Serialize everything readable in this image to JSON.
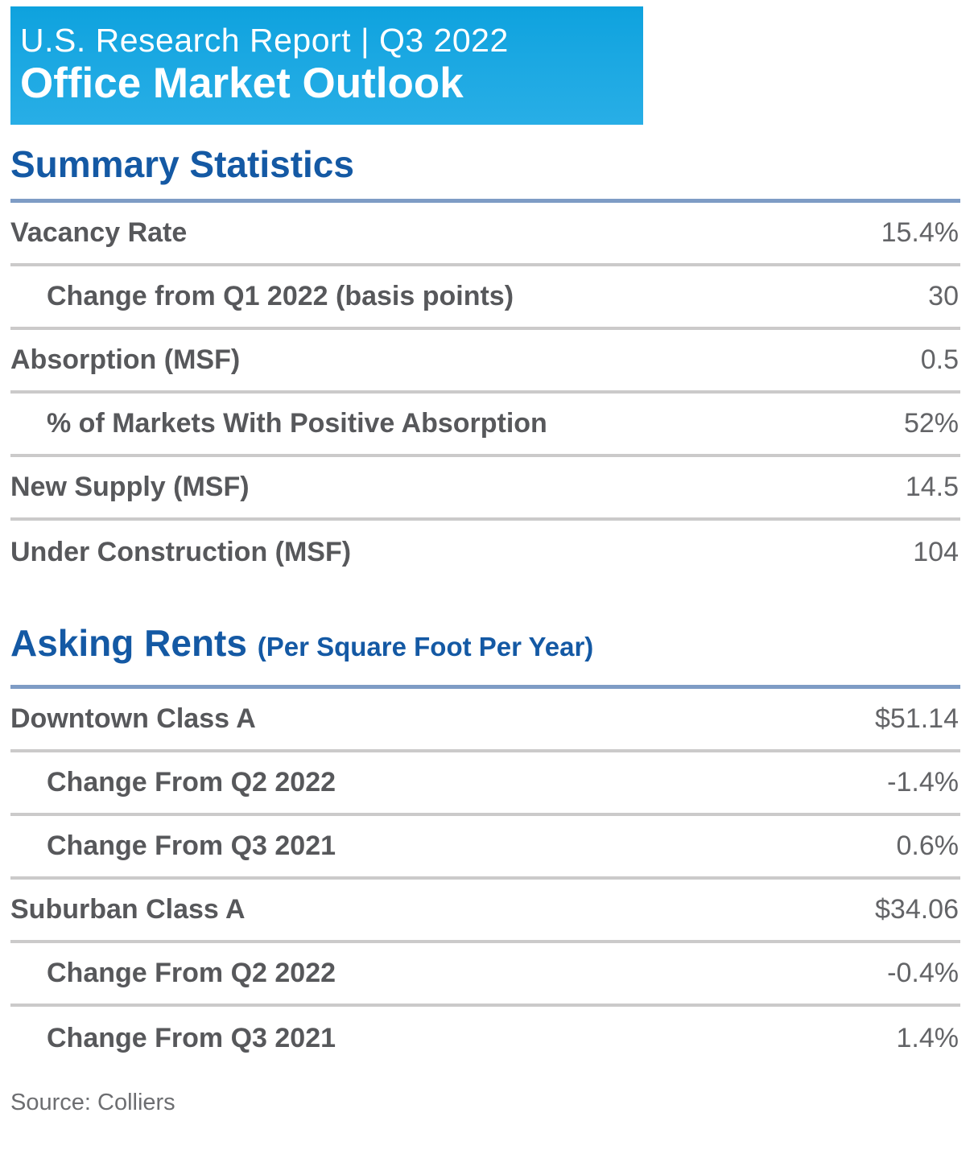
{
  "banner": {
    "line1": "U.S. Research Report | Q3 2022",
    "line2": "Office Market Outlook",
    "bg_color": "#1BA8E2",
    "text_color": "#FFFFFF"
  },
  "colors": {
    "heading_blue": "#1459A4",
    "heading_rule_blue": "#7E9CC5",
    "row_divider_gray": "#CBCACA",
    "label_gray": "#57585B",
    "value_gray": "#636467"
  },
  "summary": {
    "title": "Summary Statistics",
    "rows": [
      {
        "label": "Vacancy Rate",
        "value": "15.4%",
        "indent": false
      },
      {
        "label": "Change from Q1 2022 (basis points)",
        "value": "30",
        "indent": true
      },
      {
        "label": "Absorption (MSF)",
        "value": "0.5",
        "indent": false
      },
      {
        "label": "% of Markets With Positive Absorption",
        "value": "52%",
        "indent": true
      },
      {
        "label": "New Supply (MSF)",
        "value": "14.5",
        "indent": false
      },
      {
        "label": "Under Construction (MSF)",
        "value": "104",
        "indent": false
      }
    ]
  },
  "asking_rents": {
    "title": "Asking Rents",
    "subtitle": "(Per Square Foot Per Year)",
    "rows": [
      {
        "label": "Downtown Class A",
        "value": "$51.14",
        "indent": false
      },
      {
        "label": "Change From Q2 2022",
        "value": "-1.4%",
        "indent": true
      },
      {
        "label": "Change From Q3 2021",
        "value": "0.6%",
        "indent": true
      },
      {
        "label": "Suburban Class A",
        "value": "$34.06",
        "indent": false
      },
      {
        "label": "Change From Q2 2022",
        "value": "-0.4%",
        "indent": true
      },
      {
        "label": "Change From Q3 2021",
        "value": "1.4%",
        "indent": true
      }
    ]
  },
  "source": "Source: Colliers"
}
